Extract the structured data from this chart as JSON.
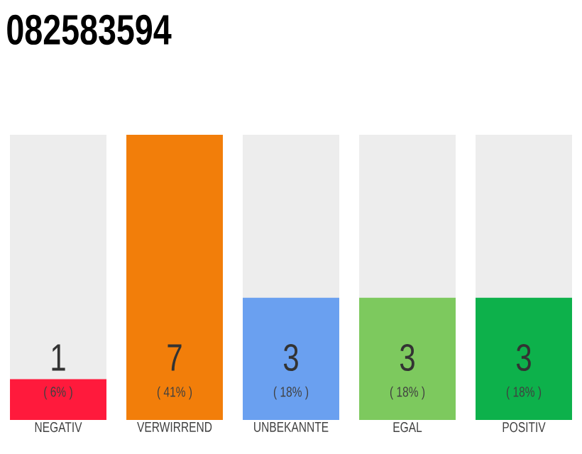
{
  "chart_data": {
    "type": "bar",
    "title": "082583594",
    "categories": [
      "NEGATIV",
      "VERWIRREND",
      "UNBEKANNTE",
      "EGAL",
      "POSITIV"
    ],
    "values": [
      1,
      7,
      3,
      3,
      3
    ],
    "colors": [
      "#ff1a3c",
      "#f27e0a",
      "#6aa0f0",
      "#7dc95e",
      "#0db14b"
    ],
    "value_labels": [
      "1",
      "7",
      "3",
      "3",
      "3"
    ],
    "annotations": [
      "( 6% )",
      "( 41% )",
      "( 18% )",
      "( 18% )",
      "( 18% )"
    ],
    "tick_labels": "x"
  }
}
